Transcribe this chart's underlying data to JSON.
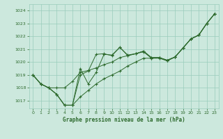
{
  "title": "Graphe pression niveau de la mer (hPa)",
  "background_color": "#cce8dd",
  "grid_color": "#99ccbb",
  "line_color": "#2d6a2d",
  "xlim": [
    -0.5,
    23.5
  ],
  "ylim": [
    1016.4,
    1024.5
  ],
  "yticks": [
    1017,
    1018,
    1019,
    1020,
    1021,
    1022,
    1023,
    1024
  ],
  "xticks": [
    0,
    1,
    2,
    3,
    4,
    5,
    6,
    7,
    8,
    9,
    10,
    11,
    12,
    13,
    14,
    15,
    16,
    17,
    18,
    19,
    20,
    21,
    22,
    23
  ],
  "series": [
    [
      1019.0,
      1018.3,
      1018.0,
      1017.5,
      1016.65,
      1016.65,
      1017.3,
      1017.8,
      1018.3,
      1018.7,
      1019.0,
      1019.3,
      1019.7,
      1020.0,
      1020.3,
      1020.3,
      1020.3,
      1020.1,
      1020.4,
      1021.1,
      1021.8,
      1022.1,
      1023.0,
      1023.75
    ],
    [
      1019.0,
      1018.3,
      1018.0,
      1017.5,
      1016.65,
      1016.65,
      1019.0,
      1019.3,
      1020.6,
      1020.65,
      1020.5,
      1021.15,
      1020.5,
      1020.65,
      1020.8,
      1020.3,
      1020.35,
      1020.1,
      1020.4,
      1021.1,
      1021.8,
      1022.1,
      1023.0,
      1023.75
    ],
    [
      1019.0,
      1018.3,
      1018.0,
      1017.5,
      1016.65,
      1016.65,
      1019.5,
      1018.3,
      1019.2,
      1020.6,
      1020.55,
      1021.15,
      1020.55,
      1020.65,
      1020.85,
      1020.35,
      1020.35,
      1020.15,
      1020.4,
      1021.1,
      1021.8,
      1022.1,
      1023.0,
      1023.75
    ],
    [
      1019.0,
      1018.3,
      1018.0,
      1018.0,
      1018.0,
      1018.5,
      1019.2,
      1019.35,
      1019.55,
      1019.8,
      1020.0,
      1020.35,
      1020.5,
      1020.65,
      1020.85,
      1020.35,
      1020.35,
      1020.15,
      1020.4,
      1021.1,
      1021.8,
      1022.1,
      1023.0,
      1023.75
    ]
  ]
}
